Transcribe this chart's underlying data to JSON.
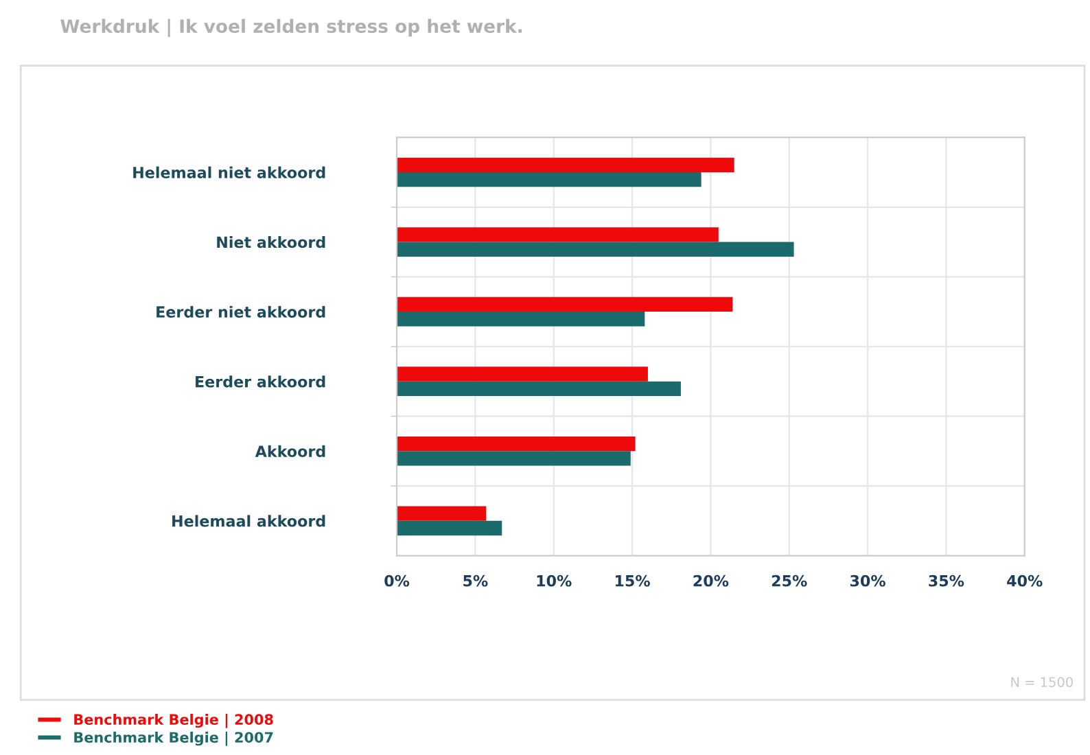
{
  "chart_data": {
    "type": "bar",
    "orientation": "horizontal",
    "title": "Werkdruk | Ik voel zelden stress op het werk.",
    "categories": [
      "Helemaal niet akkoord",
      "Niet akkoord",
      "Eerder niet akkoord",
      "Eerder akkoord",
      "Akkoord",
      "Helemaal akkoord"
    ],
    "series": [
      {
        "name": "Benchmark Belgie | 2008",
        "color": "#ee0a0a",
        "values": [
          21.5,
          20.5,
          21.4,
          16.0,
          15.2,
          5.7
        ]
      },
      {
        "name": "Benchmark Belgie | 2007",
        "color": "#1b6a6c",
        "values": [
          19.4,
          25.3,
          15.8,
          18.1,
          14.9,
          6.7
        ]
      }
    ],
    "xlim": [
      0,
      40
    ],
    "xticks": [
      {
        "value": 0,
        "label": "0%"
      },
      {
        "value": 5,
        "label": "5%"
      },
      {
        "value": 10,
        "label": "10%"
      },
      {
        "value": 15,
        "label": "15%"
      },
      {
        "value": 20,
        "label": "20%"
      },
      {
        "value": 25,
        "label": "25%"
      },
      {
        "value": 30,
        "label": "30%"
      },
      {
        "value": 35,
        "label": "35%"
      },
      {
        "value": 40,
        "label": "40%"
      }
    ],
    "grid": true,
    "legend": "bottom left",
    "annotations": [
      "N = 1500"
    ]
  }
}
